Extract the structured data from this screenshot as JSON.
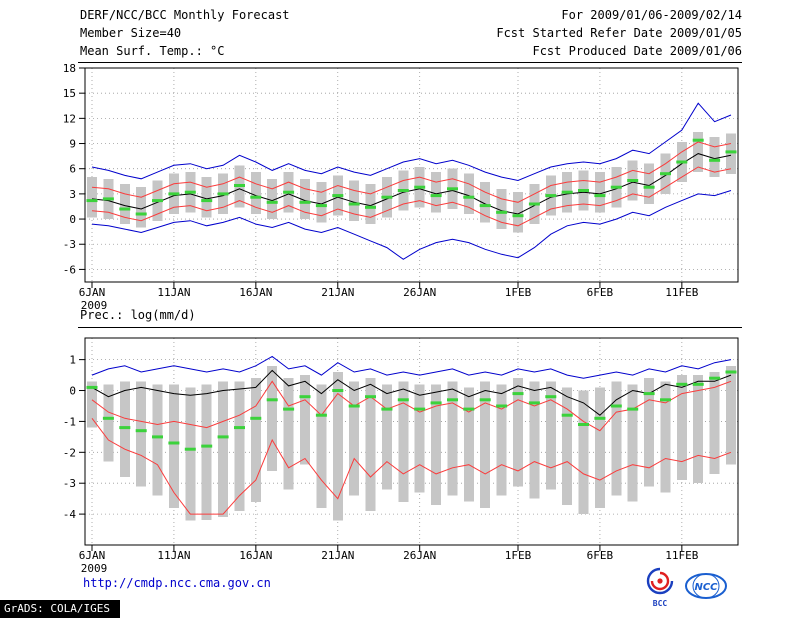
{
  "header": {
    "title": "DERF/NCC/BCC Monthly Forecast",
    "member_size": "Member Size=40",
    "for_range": "For 2009/01/06-2009/02/14",
    "refer_date": "Fcst Started Refer Date 2009/01/05",
    "produced_date": "Fcst Produced Date 2009/01/06"
  },
  "footer": {
    "url": "http://cmdp.ncc.cma.gov.cn",
    "grads_stamp": "GrADS: COLA/IGES",
    "bcc_label": "BCC",
    "ncc_label": "NCC"
  },
  "chart_data": [
    {
      "type": "line",
      "title": "Mean Surf. Temp.: °C",
      "ylim": [
        -7.5,
        18
      ],
      "yticks": [
        18,
        15,
        12,
        9,
        6,
        3,
        0,
        -3,
        -6
      ],
      "n_days": 40,
      "x_tick_days": [
        0,
        5,
        10,
        15,
        20,
        26,
        31,
        36
      ],
      "x_tick_labels": [
        "6JAN",
        "11JAN",
        "16JAN",
        "21JAN",
        "26JAN",
        "1FEB",
        "6FEB",
        "11FEB"
      ],
      "x_year_label": "2009",
      "grid": true,
      "bars": {
        "name": "ensemble-spread",
        "color": "#c6c6c6",
        "low": [
          0.2,
          0.0,
          -0.6,
          -1.0,
          -0.2,
          0.6,
          0.8,
          0.2,
          0.6,
          1.4,
          0.6,
          0.0,
          0.8,
          0.0,
          -0.4,
          0.4,
          -0.2,
          -0.6,
          0.2,
          1.0,
          1.4,
          0.8,
          1.2,
          0.6,
          -0.4,
          -1.2,
          -1.6,
          -0.6,
          0.4,
          0.8,
          1.0,
          0.8,
          1.4,
          2.2,
          1.8,
          3.0,
          4.4,
          5.6,
          5.0,
          5.4
        ],
        "high": [
          5.0,
          4.8,
          4.2,
          3.8,
          4.6,
          5.4,
          5.6,
          5.0,
          5.4,
          6.4,
          5.6,
          4.8,
          5.6,
          4.8,
          4.4,
          5.2,
          4.6,
          4.2,
          5.0,
          5.8,
          6.2,
          5.6,
          6.0,
          5.4,
          4.4,
          3.6,
          3.2,
          4.2,
          5.2,
          5.6,
          5.8,
          5.6,
          6.2,
          7.0,
          6.6,
          7.8,
          9.2,
          10.4,
          9.8,
          10.2
        ]
      },
      "series": [
        {
          "name": "ensemble-max",
          "color": "#0000cc",
          "width": 1,
          "values": [
            6.2,
            5.8,
            5.2,
            4.8,
            5.6,
            6.4,
            6.6,
            6.0,
            6.4,
            7.6,
            6.8,
            5.8,
            6.6,
            5.8,
            5.4,
            6.2,
            5.6,
            5.2,
            6.0,
            6.8,
            7.2,
            6.6,
            7.0,
            6.4,
            5.6,
            5.0,
            4.6,
            5.4,
            6.2,
            6.6,
            6.8,
            6.6,
            7.2,
            8.2,
            7.8,
            9.2,
            10.6,
            13.8,
            11.6,
            12.4
          ]
        },
        {
          "name": "upper-quartile",
          "color": "#fa3c3c",
          "width": 1,
          "values": [
            3.8,
            3.6,
            3.0,
            2.6,
            3.4,
            4.2,
            4.4,
            3.8,
            4.2,
            5.0,
            4.2,
            3.6,
            4.4,
            3.6,
            3.2,
            4.0,
            3.4,
            3.0,
            3.8,
            4.6,
            5.0,
            4.4,
            4.8,
            4.2,
            3.2,
            2.4,
            2.0,
            3.0,
            4.0,
            4.4,
            4.6,
            4.4,
            5.0,
            5.8,
            5.4,
            6.6,
            8.0,
            9.2,
            8.6,
            9.0
          ]
        },
        {
          "name": "ensemble-mean",
          "color": "#000000",
          "width": 1,
          "values": [
            2.4,
            2.2,
            1.6,
            1.2,
            2.0,
            2.8,
            3.0,
            2.4,
            2.8,
            3.6,
            2.8,
            2.2,
            3.0,
            2.2,
            1.8,
            2.6,
            2.0,
            1.6,
            2.4,
            3.2,
            3.6,
            3.0,
            3.4,
            2.8,
            1.8,
            1.0,
            0.6,
            1.6,
            2.6,
            3.0,
            3.2,
            3.0,
            3.6,
            4.4,
            4.0,
            5.2,
            6.6,
            7.8,
            7.2,
            7.6
          ]
        },
        {
          "name": "lower-quartile",
          "color": "#fa3c3c",
          "width": 1,
          "values": [
            1.0,
            0.8,
            0.2,
            -0.2,
            0.6,
            1.4,
            1.6,
            1.0,
            1.4,
            2.2,
            1.4,
            0.8,
            1.6,
            0.8,
            0.4,
            1.2,
            0.6,
            0.2,
            1.0,
            1.8,
            2.2,
            1.6,
            2.0,
            1.4,
            0.4,
            -0.4,
            -0.8,
            0.2,
            1.2,
            1.6,
            1.8,
            1.6,
            2.2,
            3.0,
            2.6,
            3.8,
            5.0,
            6.2,
            5.6,
            6.0
          ]
        },
        {
          "name": "ensemble-min",
          "color": "#0000cc",
          "width": 1,
          "values": [
            -0.6,
            -0.8,
            -1.2,
            -1.6,
            -1.0,
            -0.4,
            -0.2,
            -0.8,
            -0.4,
            0.2,
            -0.6,
            -1.0,
            -0.4,
            -1.2,
            -1.6,
            -1.0,
            -1.8,
            -2.6,
            -3.4,
            -4.8,
            -3.6,
            -2.8,
            -2.4,
            -2.8,
            -3.6,
            -4.2,
            -4.6,
            -3.4,
            -1.8,
            -0.8,
            -0.4,
            -0.6,
            0.0,
            0.8,
            0.4,
            1.4,
            2.2,
            3.0,
            2.8,
            3.4
          ]
        }
      ],
      "markers": {
        "name": "member-median-dash",
        "color": "#3bd23b",
        "values": [
          2.2,
          2.4,
          1.2,
          0.6,
          2.2,
          3.0,
          3.2,
          2.2,
          3.0,
          4.0,
          2.6,
          2.0,
          3.2,
          2.0,
          1.6,
          2.8,
          1.8,
          1.4,
          2.6,
          3.4,
          3.8,
          2.8,
          3.6,
          2.6,
          1.6,
          0.8,
          0.4,
          1.8,
          2.8,
          3.2,
          3.4,
          2.8,
          3.8,
          4.6,
          3.8,
          5.4,
          6.8,
          9.4,
          7.0,
          8.0
        ]
      }
    },
    {
      "type": "line",
      "title": "Prec.: log(mm/d)",
      "ylim": [
        -5.0,
        1.7
      ],
      "yticks": [
        1,
        0,
        -1,
        -2,
        -3,
        -4
      ],
      "n_days": 40,
      "x_tick_days": [
        0,
        5,
        10,
        15,
        20,
        26,
        31,
        36
      ],
      "x_tick_labels": [
        "6JAN",
        "11JAN",
        "16JAN",
        "21JAN",
        "26JAN",
        "1FEB",
        "6FEB",
        "11FEB"
      ],
      "x_year_label": "2009",
      "grid": true,
      "bars": {
        "name": "ensemble-spread",
        "color": "#c6c6c6",
        "low": [
          -1.2,
          -2.3,
          -2.8,
          -3.1,
          -3.4,
          -3.8,
          -4.2,
          -4.2,
          -4.1,
          -3.9,
          -3.6,
          -2.6,
          -3.2,
          -2.4,
          -3.8,
          -4.2,
          -3.4,
          -3.9,
          -3.2,
          -3.6,
          -3.3,
          -3.7,
          -3.4,
          -3.6,
          -3.8,
          -3.4,
          -3.1,
          -3.5,
          -3.2,
          -3.7,
          -4.0,
          -3.8,
          -3.4,
          -3.6,
          -3.1,
          -3.3,
          -2.9,
          -3.0,
          -2.7,
          -2.4
        ],
        "high": [
          0.3,
          0.2,
          0.3,
          0.3,
          0.2,
          0.2,
          0.1,
          0.2,
          0.3,
          0.3,
          0.4,
          0.8,
          0.4,
          0.5,
          0.2,
          0.6,
          0.3,
          0.4,
          0.2,
          0.3,
          0.2,
          0.2,
          0.3,
          0.1,
          0.3,
          0.2,
          0.4,
          0.3,
          0.3,
          0.1,
          0.0,
          0.1,
          0.3,
          0.2,
          0.4,
          0.3,
          0.5,
          0.5,
          0.6,
          0.8
        ]
      },
      "series": [
        {
          "name": "ensemble-max",
          "color": "#0000cc",
          "width": 1,
          "values": [
            0.5,
            0.7,
            0.8,
            0.6,
            0.7,
            0.8,
            0.7,
            0.6,
            0.7,
            0.6,
            0.8,
            1.1,
            0.7,
            0.8,
            0.5,
            0.9,
            0.6,
            0.7,
            0.5,
            0.6,
            0.5,
            0.6,
            0.7,
            0.5,
            0.6,
            0.5,
            0.7,
            0.6,
            0.7,
            0.5,
            0.4,
            0.5,
            0.6,
            0.5,
            0.7,
            0.6,
            0.8,
            0.7,
            0.9,
            1.0
          ]
        },
        {
          "name": "ensemble-mean",
          "color": "#000000",
          "width": 1,
          "values": [
            0.1,
            -0.2,
            0.0,
            0.1,
            0.0,
            -0.1,
            -0.15,
            -0.1,
            0.0,
            0.05,
            0.1,
            0.65,
            0.15,
            0.3,
            -0.1,
            0.35,
            0.0,
            0.2,
            -0.1,
            0.05,
            -0.15,
            -0.05,
            0.05,
            -0.2,
            0.0,
            -0.1,
            0.15,
            0.0,
            0.1,
            -0.2,
            -0.4,
            -0.8,
            -0.3,
            0.0,
            -0.1,
            0.2,
            0.1,
            0.3,
            0.3,
            0.5
          ]
        },
        {
          "name": "upper-quartile",
          "color": "#fa3c3c",
          "width": 1,
          "values": [
            -0.3,
            -0.7,
            -0.9,
            -1.0,
            -1.1,
            -1.0,
            -1.1,
            -1.2,
            -1.0,
            -0.8,
            -0.5,
            0.3,
            -0.5,
            -0.3,
            -0.8,
            -0.1,
            -0.5,
            -0.2,
            -0.6,
            -0.4,
            -0.7,
            -0.5,
            -0.4,
            -0.7,
            -0.4,
            -0.6,
            -0.3,
            -0.5,
            -0.3,
            -0.6,
            -1.0,
            -1.3,
            -0.7,
            -0.6,
            -0.3,
            -0.4,
            -0.1,
            0.0,
            0.1,
            0.3
          ]
        },
        {
          "name": "lower-quartile",
          "color": "#fa3c3c",
          "width": 1,
          "values": [
            -0.9,
            -1.6,
            -1.9,
            -2.1,
            -2.4,
            -3.3,
            -4.0,
            -4.0,
            -4.0,
            -3.4,
            -2.9,
            -1.6,
            -2.5,
            -2.2,
            -2.9,
            -3.5,
            -2.2,
            -2.8,
            -2.3,
            -2.7,
            -2.4,
            -2.7,
            -2.5,
            -2.4,
            -2.7,
            -2.4,
            -2.6,
            -2.3,
            -2.5,
            -2.3,
            -2.7,
            -2.9,
            -2.6,
            -2.4,
            -2.5,
            -2.2,
            -2.3,
            -2.1,
            -2.2,
            -2.0
          ]
        }
      ],
      "markers": {
        "name": "member-median-dash",
        "color": "#3bd23b",
        "values": [
          0.1,
          -0.9,
          -1.2,
          -1.3,
          -1.5,
          -1.7,
          -1.9,
          -1.8,
          -1.5,
          -1.2,
          -0.9,
          -0.3,
          -0.6,
          -0.2,
          -0.8,
          0.0,
          -0.5,
          -0.2,
          -0.6,
          -0.3,
          -0.6,
          -0.4,
          -0.3,
          -0.6,
          -0.3,
          -0.5,
          -0.1,
          -0.4,
          -0.2,
          -0.8,
          -1.1,
          -0.9,
          -0.5,
          -0.6,
          -0.1,
          -0.3,
          0.2,
          0.2,
          0.4,
          0.6
        ]
      }
    }
  ]
}
